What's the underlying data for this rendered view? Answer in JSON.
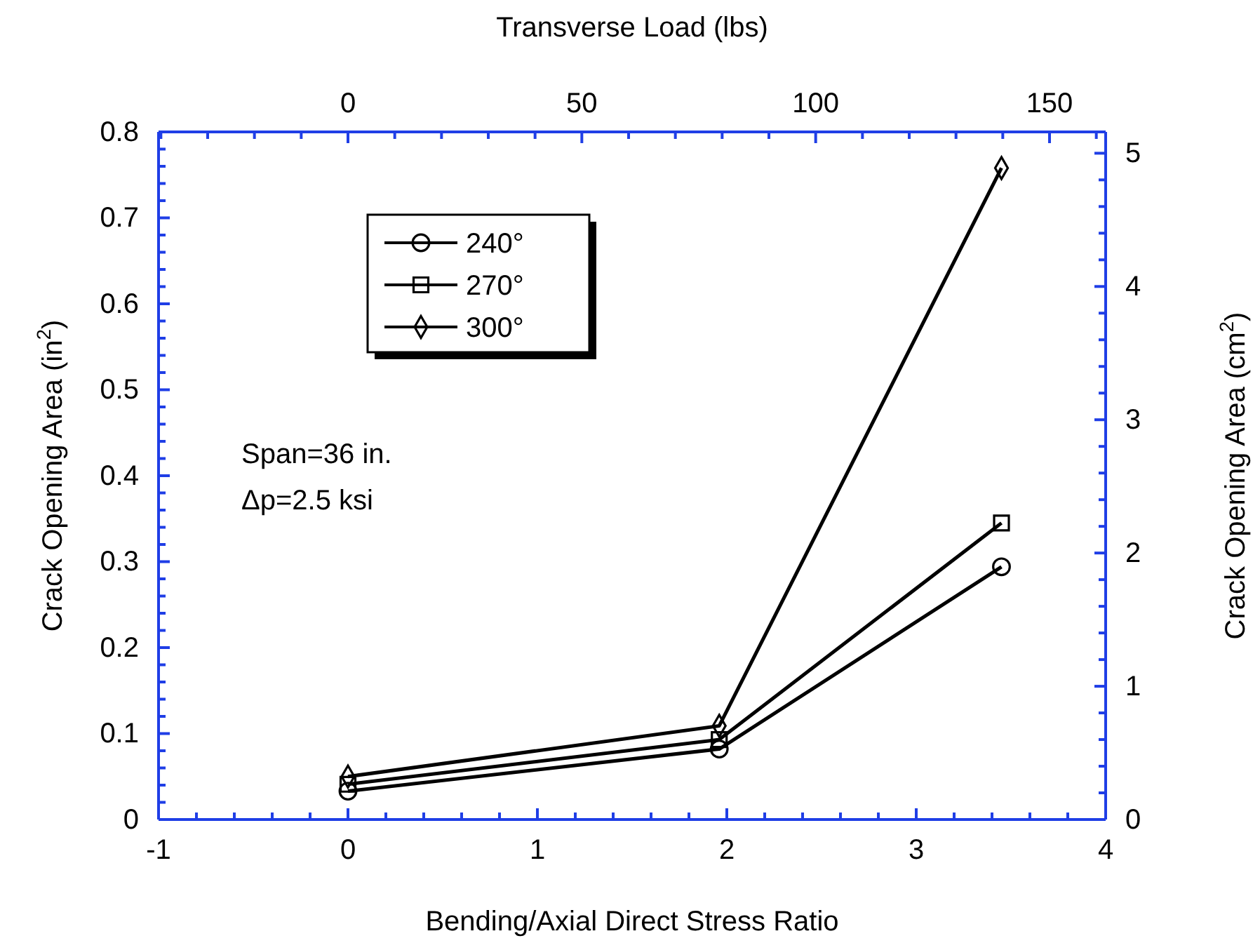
{
  "chart_data": {
    "type": "line",
    "xlabel": "Bending/Axial Direct Stress Ratio",
    "ylabel": "Crack Opening Area (in$^{2}$)",
    "y2label": "Crack Opening Area (cm$^{2}$)",
    "x2label": "Transverse Load (lbs)",
    "x": [
      0,
      1.96,
      3.45
    ],
    "series": [
      {
        "name": "240°",
        "color": "#000000",
        "marker": "circle",
        "values": [
          0.033,
          0.082,
          0.294
        ]
      },
      {
        "name": "270°",
        "color": "#000000",
        "marker": "square",
        "values": [
          0.041,
          0.093,
          0.345
        ]
      },
      {
        "name": "300°",
        "color": "#000000",
        "marker": "diamond",
        "values": [
          0.05,
          0.109,
          0.758
        ]
      }
    ],
    "xlim": [
      -1,
      4
    ],
    "ylim": [
      0,
      0.8
    ],
    "x2lim": [
      -40.5,
      162
    ],
    "y2lim": [
      0,
      5.16
    ],
    "xticks": [
      -1,
      {
        "value": -0.8,
        "label": null
      },
      {
        "value": -0.6,
        "label": null
      },
      {
        "value": -0.4,
        "label": null
      },
      {
        "value": -0.2,
        "label": null
      },
      0,
      {
        "value": 0.2,
        "label": null
      },
      {
        "value": 0.4,
        "label": null
      },
      {
        "value": 0.6,
        "label": null
      },
      {
        "value": 0.8,
        "label": null
      },
      1,
      {
        "value": 1.2,
        "label": null
      },
      {
        "value": 1.4,
        "label": null
      },
      {
        "value": 1.6,
        "label": null
      },
      {
        "value": 1.8,
        "label": null
      },
      2,
      {
        "value": 2.2,
        "label": null
      },
      {
        "value": 2.4,
        "label": null
      },
      {
        "value": 2.6,
        "label": null
      },
      {
        "value": 2.8,
        "label": null
      },
      3,
      {
        "value": 3.2,
        "label": null
      },
      {
        "value": 3.4,
        "label": null
      },
      {
        "value": 3.6,
        "label": null
      },
      {
        "value": 3.8,
        "label": null
      },
      4
    ],
    "yticks": [
      0,
      {
        "value": 0.02,
        "label": null
      },
      {
        "value": 0.04,
        "label": null
      },
      {
        "value": 0.06,
        "label": null
      },
      {
        "value": 0.08,
        "label": null
      },
      0.1,
      {
        "value": 0.12,
        "label": null
      },
      {
        "value": 0.14,
        "label": null
      },
      {
        "value": 0.16,
        "label": null
      },
      {
        "value": 0.18,
        "label": null
      },
      0.2,
      {
        "value": 0.22,
        "label": null
      },
      {
        "value": 0.24,
        "label": null
      },
      {
        "value": 0.26,
        "label": null
      },
      {
        "value": 0.28,
        "label": null
      },
      0.3,
      {
        "value": 0.32,
        "label": null
      },
      {
        "value": 0.34,
        "label": null
      },
      {
        "value": 0.36,
        "label": null
      },
      {
        "value": 0.38,
        "label": null
      },
      0.4,
      {
        "value": 0.42,
        "label": null
      },
      {
        "value": 0.44,
        "label": null
      },
      {
        "value": 0.46,
        "label": null
      },
      {
        "value": 0.48,
        "label": null
      },
      0.5,
      {
        "value": 0.52,
        "label": null
      },
      {
        "value": 0.54,
        "label": null
      },
      {
        "value": 0.56,
        "label": null
      },
      {
        "value": 0.58,
        "label": null
      },
      0.6,
      {
        "value": 0.62,
        "label": null
      },
      {
        "value": 0.64,
        "label": null
      },
      {
        "value": 0.66,
        "label": null
      },
      {
        "value": 0.68,
        "label": null
      },
      0.7,
      {
        "value": 0.72,
        "label": null
      },
      {
        "value": 0.74,
        "label": null
      },
      {
        "value": 0.76,
        "label": null
      },
      {
        "value": 0.78,
        "label": null
      },
      0.8
    ],
    "x2ticks": [
      {
        "value": -40,
        "label": null
      },
      {
        "value": -30,
        "label": null
      },
      {
        "value": -20,
        "label": null
      },
      {
        "value": -10,
        "label": null
      },
      0,
      {
        "value": 10,
        "label": null
      },
      {
        "value": 20,
        "label": null
      },
      {
        "value": 30,
        "label": null
      },
      {
        "value": 40,
        "label": null
      },
      50,
      {
        "value": 60,
        "label": null
      },
      {
        "value": 70,
        "label": null
      },
      {
        "value": 80,
        "label": null
      },
      {
        "value": 90,
        "label": null
      },
      100,
      {
        "value": 110,
        "label": null
      },
      {
        "value": 120,
        "label": null
      },
      {
        "value": 130,
        "label": null
      },
      {
        "value": 140,
        "label": null
      },
      150,
      {
        "value": 160,
        "label": null
      }
    ],
    "y2ticks": [
      0,
      {
        "value": 0.2,
        "label": null
      },
      {
        "value": 0.4,
        "label": null
      },
      {
        "value": 0.6,
        "label": null
      },
      {
        "value": 0.8,
        "label": null
      },
      1,
      {
        "value": 1.2,
        "label": null
      },
      {
        "value": 1.4,
        "label": null
      },
      {
        "value": 1.6,
        "label": null
      },
      {
        "value": 1.8,
        "label": null
      },
      2,
      {
        "value": 2.2,
        "label": null
      },
      {
        "value": 2.4,
        "label": null
      },
      {
        "value": 2.6,
        "label": null
      },
      {
        "value": 2.8,
        "label": null
      },
      3,
      {
        "value": 3.2,
        "label": null
      },
      {
        "value": 3.4,
        "label": null
      },
      {
        "value": 3.6,
        "label": null
      },
      {
        "value": 3.8,
        "label": null
      },
      4,
      {
        "value": 4.2,
        "label": null
      },
      {
        "value": 4.4,
        "label": null
      },
      {
        "value": 4.6,
        "label": null
      },
      {
        "value": 4.8,
        "label": null
      },
      5
    ],
    "annotations": [
      "Span=36 in.",
      "Δp=2.5 ksi"
    ],
    "legend": "top left",
    "grid": false
  }
}
